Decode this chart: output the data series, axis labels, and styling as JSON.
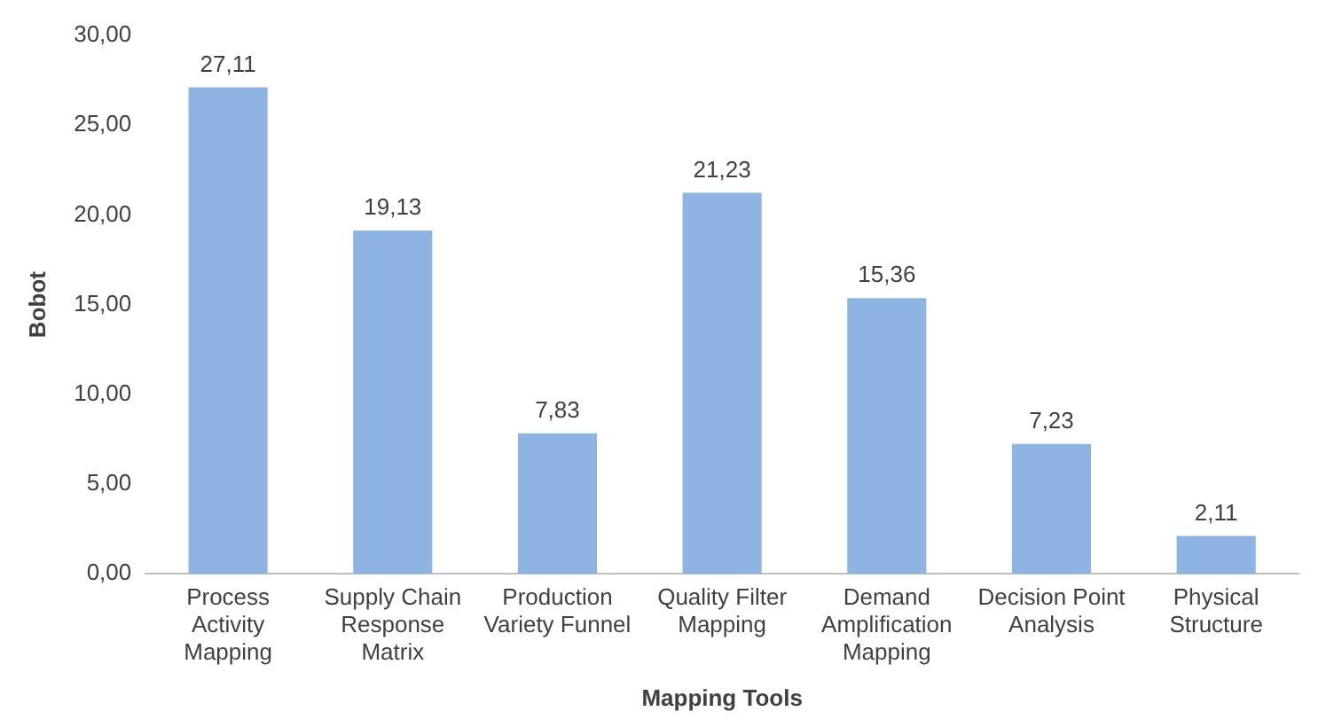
{
  "chart_data": {
    "type": "bar",
    "xlabel": "Mapping Tools",
    "ylabel": "Bobot",
    "categories": [
      "Process Activity Mapping",
      "Supply Chain Response Matrix",
      "Production Variety Funnel",
      "Quality Filter Mapping",
      "Demand Amplification Mapping",
      "Decision Point Analysis",
      "Physical Structure"
    ],
    "values": [
      27.11,
      19.13,
      7.83,
      21.23,
      15.36,
      7.23,
      2.11
    ],
    "value_labels": [
      "27,11",
      "19,13",
      "7,83",
      "21,23",
      "15,36",
      "7,23",
      "2,11"
    ],
    "color": "#8db4e2",
    "ylim": [
      0,
      30
    ],
    "yticks": [
      {
        "value": 0,
        "label": "0,00"
      },
      {
        "value": 5,
        "label": "5,00"
      },
      {
        "value": 10,
        "label": "10,00"
      },
      {
        "value": 15,
        "label": "15,00"
      },
      {
        "value": 20,
        "label": "20,00"
      },
      {
        "value": 25,
        "label": "25,00"
      },
      {
        "value": 30,
        "label": "30,00"
      }
    ],
    "grid": false,
    "legend": false
  }
}
